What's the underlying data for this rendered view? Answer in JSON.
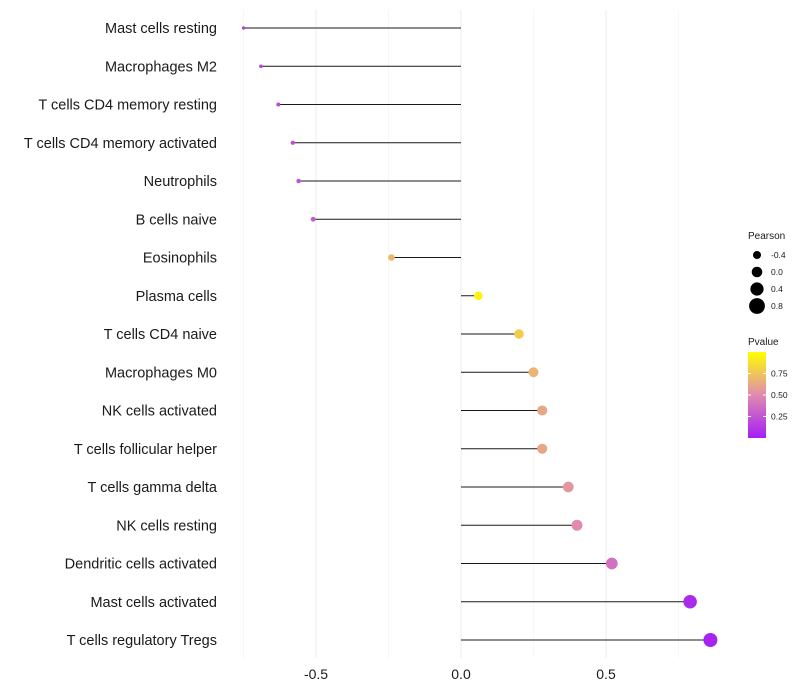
{
  "chart_data": {
    "type": "lollipop",
    "categories": [
      "Mast cells resting",
      "Macrophages M2",
      "T cells CD4 memory resting",
      "T cells CD4 memory activated",
      "Neutrophils",
      "B cells naive",
      "Eosinophils",
      "Plasma cells",
      "T cells CD4 naive",
      "Macrophages M0",
      "NK cells activated",
      "T cells follicular helper",
      "T cells gamma delta",
      "NK cells resting",
      "Dendritic cells activated",
      "Mast cells activated",
      "T cells regulatory  Tregs"
    ],
    "values": [
      -0.75,
      -0.69,
      -0.63,
      -0.58,
      -0.56,
      -0.51,
      -0.24,
      0.06,
      0.2,
      0.25,
      0.28,
      0.28,
      0.37,
      0.4,
      0.52,
      0.79,
      0.86
    ],
    "pvalues": [
      0.12,
      0.15,
      0.2,
      0.22,
      0.24,
      0.27,
      0.7,
      0.95,
      0.78,
      0.68,
      0.62,
      0.62,
      0.55,
      0.5,
      0.38,
      0.05,
      0.02
    ],
    "xlim": [
      -0.8,
      0.9
    ],
    "x_ticks": [
      -0.5,
      0.0,
      0.5
    ],
    "x_tick_labels": [
      "-0.5",
      "0.0",
      "0.5"
    ],
    "baseline": 0.0,
    "size_legend": {
      "title": "Pearson",
      "breaks": [
        -0.4,
        0.0,
        0.4,
        0.8
      ],
      "labels": [
        "-0.4",
        "0.0",
        "0.4",
        "0.8"
      ]
    },
    "color_legend": {
      "title": "Pvalue",
      "breaks": [
        0.25,
        0.5,
        0.75
      ],
      "labels": [
        "0.25",
        "0.50",
        "0.75"
      ],
      "range": [
        0.0,
        1.0
      ],
      "low_color": "#a41ff5",
      "mid_color": "#e08ab0",
      "high_color": "#ffff00"
    },
    "grid": true,
    "legend_position": "right"
  }
}
